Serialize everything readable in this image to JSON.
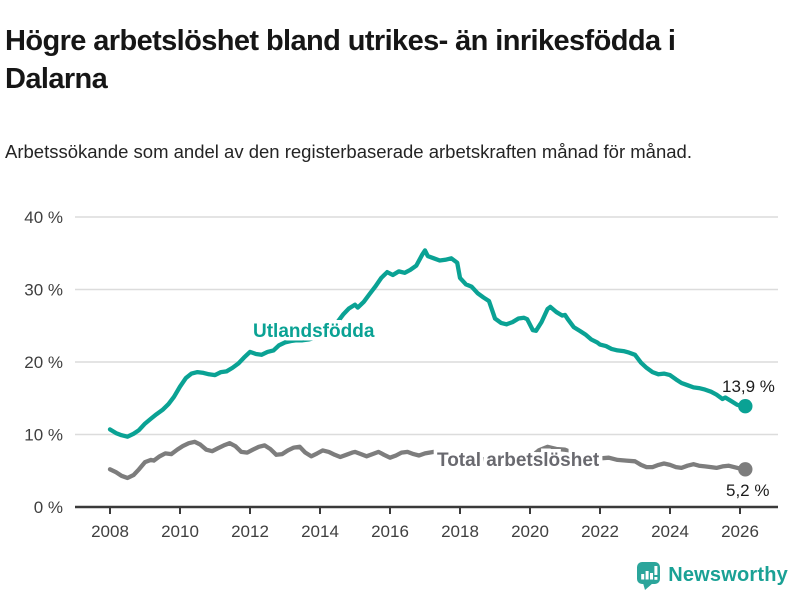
{
  "title": "Högre arbetslöshet bland utrikes- än inrikesfödda i Dalarna",
  "subtitle": "Arbetssökande som andel av den registerbaserade arbetskraften månad för månad.",
  "footer": {
    "brand": "Newsworthy",
    "brand_color": "#1aa195",
    "icon_color": "#2ba59b"
  },
  "chart_data": {
    "type": "line",
    "unit": "%",
    "grid": true,
    "x_axis": {
      "ticks": [
        2008,
        2010,
        2012,
        2014,
        2016,
        2018,
        2020,
        2022,
        2024,
        2026
      ],
      "range": [
        2007.0,
        2027.1
      ]
    },
    "y_axis": {
      "ticks": [
        0,
        10,
        20,
        30,
        40
      ],
      "range": [
        0,
        41.5
      ],
      "tick_suffix": " %"
    },
    "series": [
      {
        "name": "Utlandsfödda",
        "color": "#0aa294",
        "label_color": "#0aa294",
        "end_label": "13,9 %",
        "end_value": 13.9,
        "points": [
          [
            2008.0,
            10.7
          ],
          [
            2008.17,
            10.2
          ],
          [
            2008.33,
            9.9
          ],
          [
            2008.5,
            9.7
          ],
          [
            2008.67,
            10.1
          ],
          [
            2008.83,
            10.6
          ],
          [
            2009.0,
            11.5
          ],
          [
            2009.17,
            12.2
          ],
          [
            2009.33,
            12.8
          ],
          [
            2009.5,
            13.4
          ],
          [
            2009.67,
            14.2
          ],
          [
            2009.83,
            15.2
          ],
          [
            2010.0,
            16.6
          ],
          [
            2010.17,
            17.8
          ],
          [
            2010.33,
            18.4
          ],
          [
            2010.5,
            18.6
          ],
          [
            2010.67,
            18.5
          ],
          [
            2010.83,
            18.3
          ],
          [
            2011.0,
            18.2
          ],
          [
            2011.17,
            18.6
          ],
          [
            2011.33,
            18.7
          ],
          [
            2011.5,
            19.2
          ],
          [
            2011.67,
            19.8
          ],
          [
            2011.83,
            20.6
          ],
          [
            2012.0,
            21.4
          ],
          [
            2012.17,
            21.1
          ],
          [
            2012.33,
            21.0
          ],
          [
            2012.5,
            21.4
          ],
          [
            2012.67,
            21.6
          ],
          [
            2012.83,
            22.3
          ],
          [
            2013.0,
            22.7
          ],
          [
            2013.17,
            22.9
          ],
          [
            2013.33,
            23.0
          ],
          [
            2013.5,
            23.0
          ],
          [
            2013.67,
            23.1
          ],
          [
            2013.83,
            23.3
          ],
          [
            2014.0,
            23.6
          ],
          [
            2014.17,
            24.1
          ],
          [
            2014.33,
            24.7
          ],
          [
            2014.5,
            25.5
          ],
          [
            2014.67,
            26.6
          ],
          [
            2014.83,
            27.4
          ],
          [
            2015.0,
            27.9
          ],
          [
            2015.08,
            27.5
          ],
          [
            2015.25,
            28.3
          ],
          [
            2015.42,
            29.4
          ],
          [
            2015.58,
            30.4
          ],
          [
            2015.75,
            31.6
          ],
          [
            2015.92,
            32.4
          ],
          [
            2016.08,
            32.0
          ],
          [
            2016.25,
            32.5
          ],
          [
            2016.42,
            32.3
          ],
          [
            2016.58,
            32.7
          ],
          [
            2016.75,
            33.3
          ],
          [
            2016.92,
            34.8
          ],
          [
            2017.0,
            35.4
          ],
          [
            2017.08,
            34.6
          ],
          [
            2017.25,
            34.3
          ],
          [
            2017.42,
            34.0
          ],
          [
            2017.58,
            34.1
          ],
          [
            2017.75,
            34.3
          ],
          [
            2017.92,
            33.7
          ],
          [
            2018.0,
            31.6
          ],
          [
            2018.17,
            30.7
          ],
          [
            2018.33,
            30.4
          ],
          [
            2018.5,
            29.5
          ],
          [
            2018.67,
            28.9
          ],
          [
            2018.83,
            28.4
          ],
          [
            2019.0,
            26.0
          ],
          [
            2019.17,
            25.4
          ],
          [
            2019.33,
            25.2
          ],
          [
            2019.5,
            25.5
          ],
          [
            2019.67,
            26.0
          ],
          [
            2019.83,
            26.1
          ],
          [
            2019.92,
            25.9
          ],
          [
            2020.08,
            24.4
          ],
          [
            2020.17,
            24.3
          ],
          [
            2020.33,
            25.5
          ],
          [
            2020.5,
            27.3
          ],
          [
            2020.58,
            27.6
          ],
          [
            2020.75,
            26.9
          ],
          [
            2020.92,
            26.4
          ],
          [
            2021.0,
            26.5
          ],
          [
            2021.08,
            25.9
          ],
          [
            2021.25,
            24.8
          ],
          [
            2021.42,
            24.3
          ],
          [
            2021.58,
            23.8
          ],
          [
            2021.75,
            23.1
          ],
          [
            2021.92,
            22.7
          ],
          [
            2022.0,
            22.4
          ],
          [
            2022.17,
            22.2
          ],
          [
            2022.33,
            21.8
          ],
          [
            2022.5,
            21.6
          ],
          [
            2022.67,
            21.5
          ],
          [
            2022.83,
            21.3
          ],
          [
            2023.0,
            21.0
          ],
          [
            2023.17,
            19.9
          ],
          [
            2023.33,
            19.2
          ],
          [
            2023.5,
            18.6
          ],
          [
            2023.67,
            18.3
          ],
          [
            2023.83,
            18.4
          ],
          [
            2024.0,
            18.2
          ],
          [
            2024.17,
            17.6
          ],
          [
            2024.33,
            17.1
          ],
          [
            2024.5,
            16.8
          ],
          [
            2024.67,
            16.5
          ],
          [
            2024.83,
            16.4
          ],
          [
            2025.0,
            16.2
          ],
          [
            2025.17,
            15.9
          ],
          [
            2025.33,
            15.5
          ],
          [
            2025.5,
            14.9
          ],
          [
            2025.58,
            15.1
          ],
          [
            2025.75,
            14.6
          ],
          [
            2025.92,
            14.1
          ],
          [
            2026.0,
            14.0
          ],
          [
            2026.15,
            13.9
          ]
        ]
      },
      {
        "name": "Total arbetslöshet",
        "color": "#7d7d7d",
        "label_color": "#69696f",
        "end_label": "5,2 %",
        "end_value": 5.2,
        "points": [
          [
            2008.0,
            5.2
          ],
          [
            2008.17,
            4.8
          ],
          [
            2008.33,
            4.3
          ],
          [
            2008.5,
            4.0
          ],
          [
            2008.67,
            4.4
          ],
          [
            2008.83,
            5.2
          ],
          [
            2009.0,
            6.2
          ],
          [
            2009.17,
            6.5
          ],
          [
            2009.25,
            6.4
          ],
          [
            2009.42,
            7.0
          ],
          [
            2009.58,
            7.4
          ],
          [
            2009.75,
            7.3
          ],
          [
            2009.92,
            7.9
          ],
          [
            2010.08,
            8.4
          ],
          [
            2010.25,
            8.8
          ],
          [
            2010.42,
            9.0
          ],
          [
            2010.58,
            8.6
          ],
          [
            2010.75,
            7.9
          ],
          [
            2010.92,
            7.7
          ],
          [
            2011.08,
            8.1
          ],
          [
            2011.25,
            8.5
          ],
          [
            2011.42,
            8.8
          ],
          [
            2011.58,
            8.4
          ],
          [
            2011.75,
            7.6
          ],
          [
            2011.92,
            7.5
          ],
          [
            2012.08,
            7.9
          ],
          [
            2012.25,
            8.3
          ],
          [
            2012.42,
            8.5
          ],
          [
            2012.58,
            8.0
          ],
          [
            2012.75,
            7.2
          ],
          [
            2012.92,
            7.3
          ],
          [
            2013.08,
            7.8
          ],
          [
            2013.25,
            8.2
          ],
          [
            2013.42,
            8.3
          ],
          [
            2013.58,
            7.5
          ],
          [
            2013.75,
            7.0
          ],
          [
            2013.92,
            7.4
          ],
          [
            2014.08,
            7.8
          ],
          [
            2014.25,
            7.6
          ],
          [
            2014.42,
            7.2
          ],
          [
            2014.58,
            6.9
          ],
          [
            2014.75,
            7.2
          ],
          [
            2014.92,
            7.5
          ],
          [
            2015.0,
            7.6
          ],
          [
            2015.17,
            7.3
          ],
          [
            2015.33,
            7.0
          ],
          [
            2015.5,
            7.3
          ],
          [
            2015.67,
            7.6
          ],
          [
            2015.83,
            7.2
          ],
          [
            2016.0,
            6.8
          ],
          [
            2016.17,
            7.1
          ],
          [
            2016.33,
            7.5
          ],
          [
            2016.5,
            7.6
          ],
          [
            2016.67,
            7.3
          ],
          [
            2016.83,
            7.1
          ],
          [
            2017.0,
            7.4
          ],
          [
            2017.25,
            7.6
          ],
          [
            2017.5,
            7.1
          ],
          [
            2017.75,
            6.9
          ],
          [
            2018.0,
            7.1
          ],
          [
            2018.25,
            7.2
          ],
          [
            2018.5,
            6.7
          ],
          [
            2018.75,
            6.5
          ],
          [
            2019.0,
            6.7
          ],
          [
            2019.25,
            6.8
          ],
          [
            2019.5,
            6.4
          ],
          [
            2019.75,
            6.5
          ],
          [
            2020.0,
            6.8
          ],
          [
            2020.25,
            7.8
          ],
          [
            2020.5,
            8.3
          ],
          [
            2020.75,
            8.0
          ],
          [
            2021.0,
            7.9
          ],
          [
            2021.25,
            7.4
          ],
          [
            2021.5,
            7.0
          ],
          [
            2021.75,
            6.8
          ],
          [
            2022.0,
            6.7
          ],
          [
            2022.25,
            6.8
          ],
          [
            2022.5,
            6.5
          ],
          [
            2022.75,
            6.4
          ],
          [
            2023.0,
            6.3
          ],
          [
            2023.17,
            5.8
          ],
          [
            2023.33,
            5.5
          ],
          [
            2023.5,
            5.5
          ],
          [
            2023.67,
            5.8
          ],
          [
            2023.83,
            6.0
          ],
          [
            2024.0,
            5.8
          ],
          [
            2024.17,
            5.5
          ],
          [
            2024.33,
            5.4
          ],
          [
            2024.5,
            5.7
          ],
          [
            2024.67,
            5.9
          ],
          [
            2024.83,
            5.7
          ],
          [
            2025.0,
            5.6
          ],
          [
            2025.17,
            5.5
          ],
          [
            2025.33,
            5.4
          ],
          [
            2025.5,
            5.6
          ],
          [
            2025.67,
            5.7
          ],
          [
            2025.83,
            5.5
          ],
          [
            2026.0,
            5.3
          ],
          [
            2026.15,
            5.2
          ]
        ]
      }
    ]
  }
}
